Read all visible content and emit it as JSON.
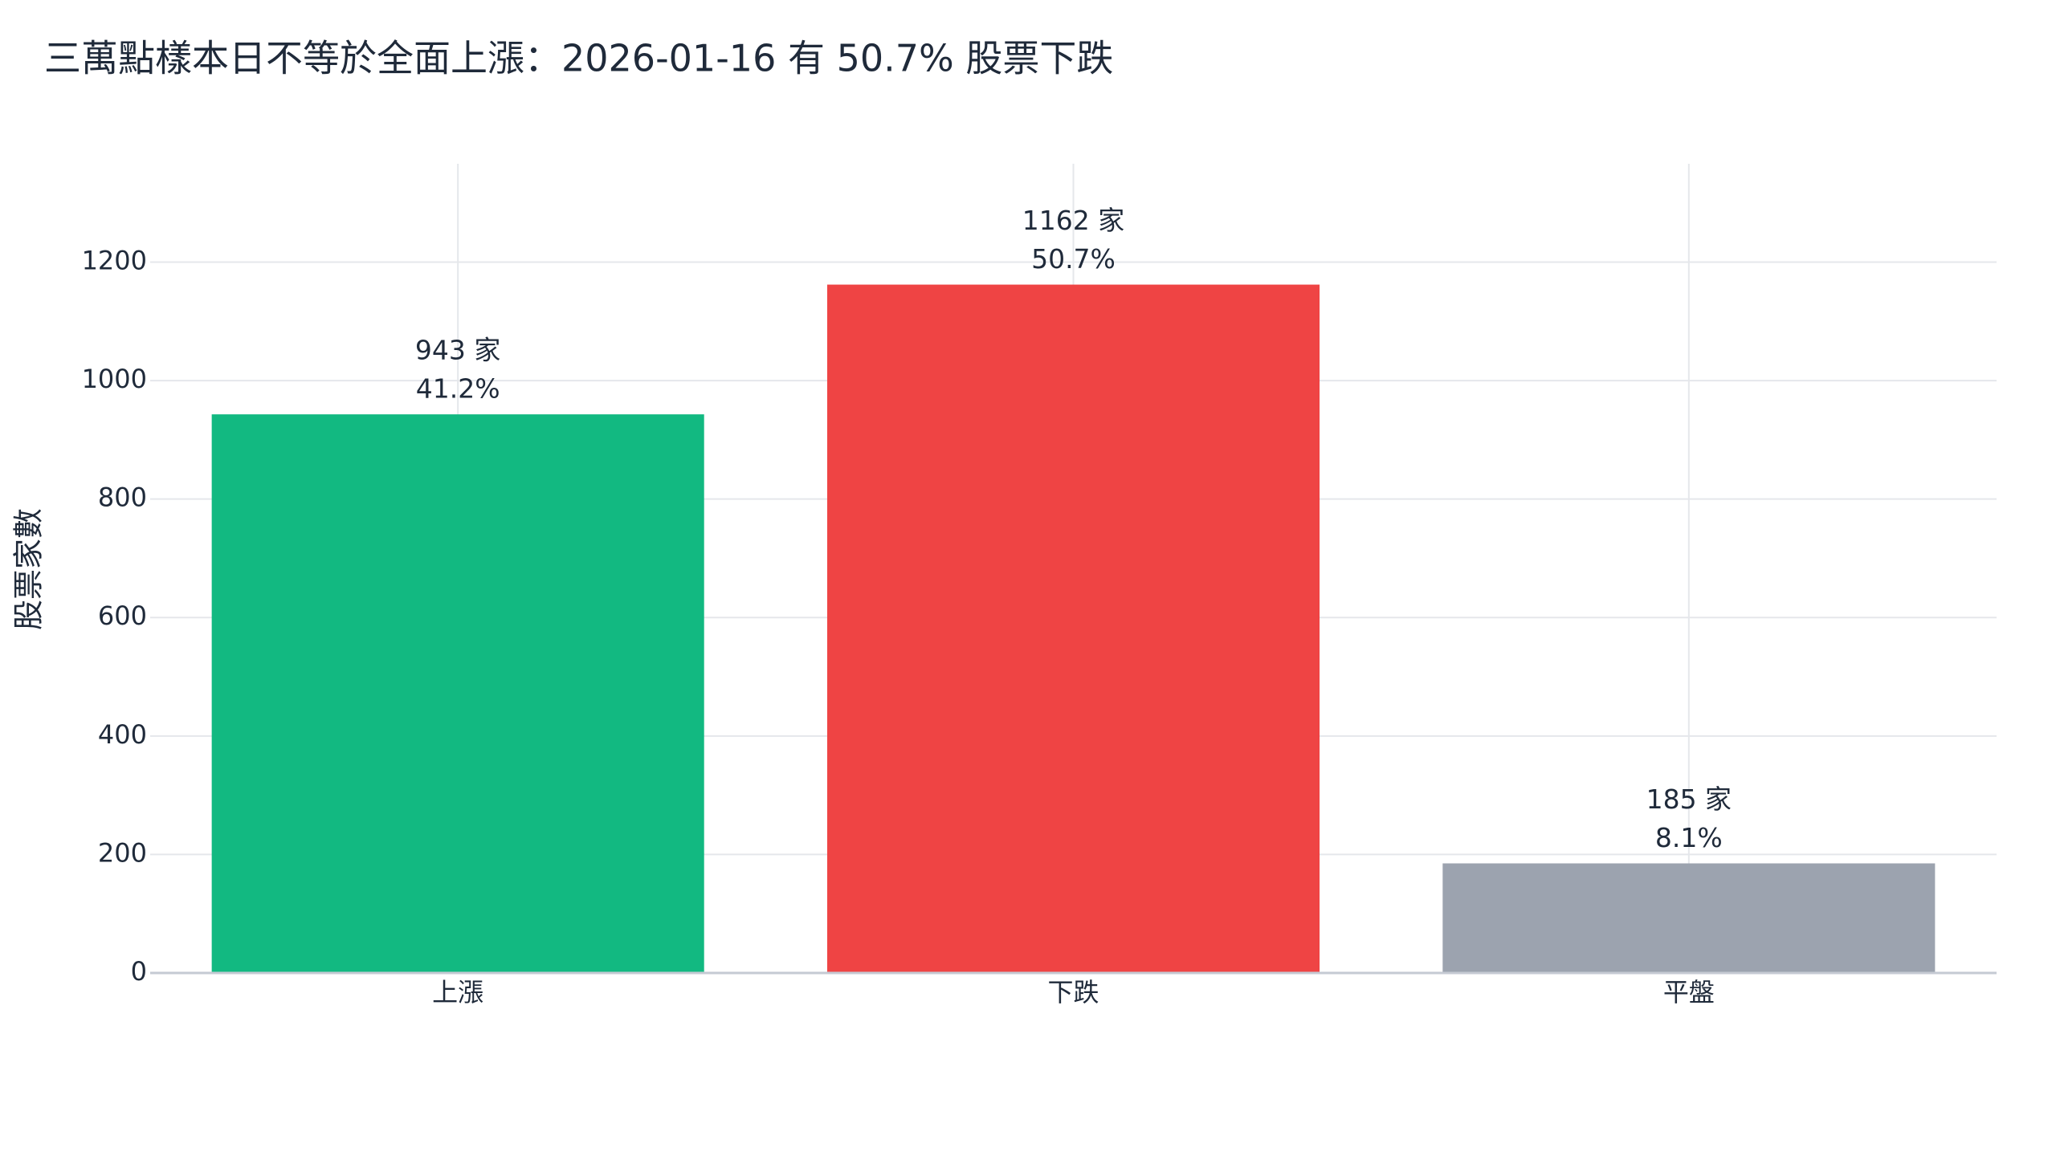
{
  "chart_data": {
    "type": "bar",
    "title": "三萬點樣本日不等於全面上漲：2026-01-16 有 50.7% 股票下跌",
    "y_label": "股票家數",
    "categories": [
      "上漲",
      "下跌",
      "平盤"
    ],
    "values": [
      943,
      1162,
      185
    ],
    "value_labels": [
      "943 家",
      "1162 家",
      "185 家"
    ],
    "percent_labels": [
      "41.2%",
      "50.7%",
      "8.1%"
    ],
    "colors": [
      "#12b981",
      "#ef4444",
      "#9ca3af"
    ],
    "ylim": [
      0,
      1366
    ],
    "yticks": [
      0,
      200,
      400,
      600,
      800,
      1000,
      1200
    ],
    "grid": true
  }
}
